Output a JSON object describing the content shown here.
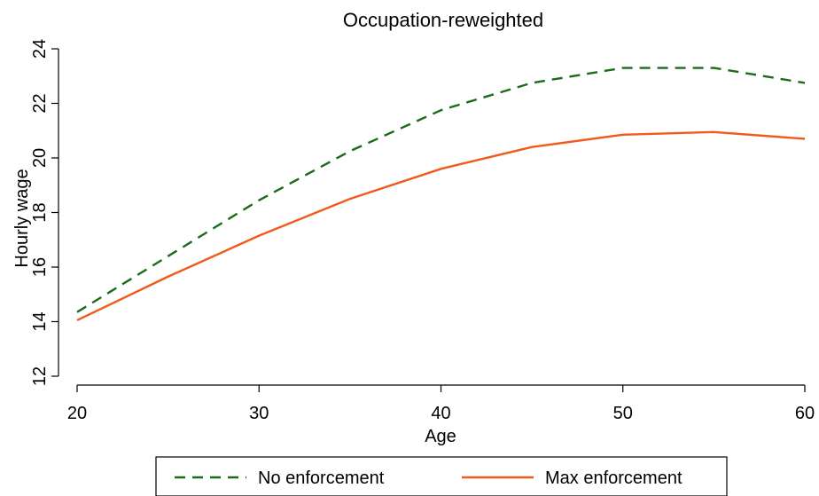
{
  "chart_data": {
    "type": "line",
    "title": "Occupation-reweighted",
    "xlabel": "Age",
    "ylabel": "Hourly wage",
    "x": [
      20,
      25,
      30,
      35,
      40,
      45,
      50,
      55,
      60
    ],
    "xlim": [
      20,
      60
    ],
    "ylim": [
      12,
      24
    ],
    "xticks": [
      20,
      30,
      40,
      50,
      60
    ],
    "yticks": [
      12,
      14,
      16,
      18,
      20,
      22,
      24
    ],
    "grid": false,
    "legend_position": "bottom",
    "series": [
      {
        "name": "No enforcement",
        "color": "#1a6b1a",
        "style": "dashed",
        "values": [
          14.35,
          16.4,
          18.45,
          20.25,
          21.75,
          22.75,
          23.3,
          23.3,
          22.75
        ]
      },
      {
        "name": "Max enforcement",
        "color": "#f05a1a",
        "style": "solid",
        "values": [
          14.05,
          15.65,
          17.15,
          18.5,
          19.6,
          20.4,
          20.85,
          20.95,
          20.7
        ]
      }
    ]
  }
}
